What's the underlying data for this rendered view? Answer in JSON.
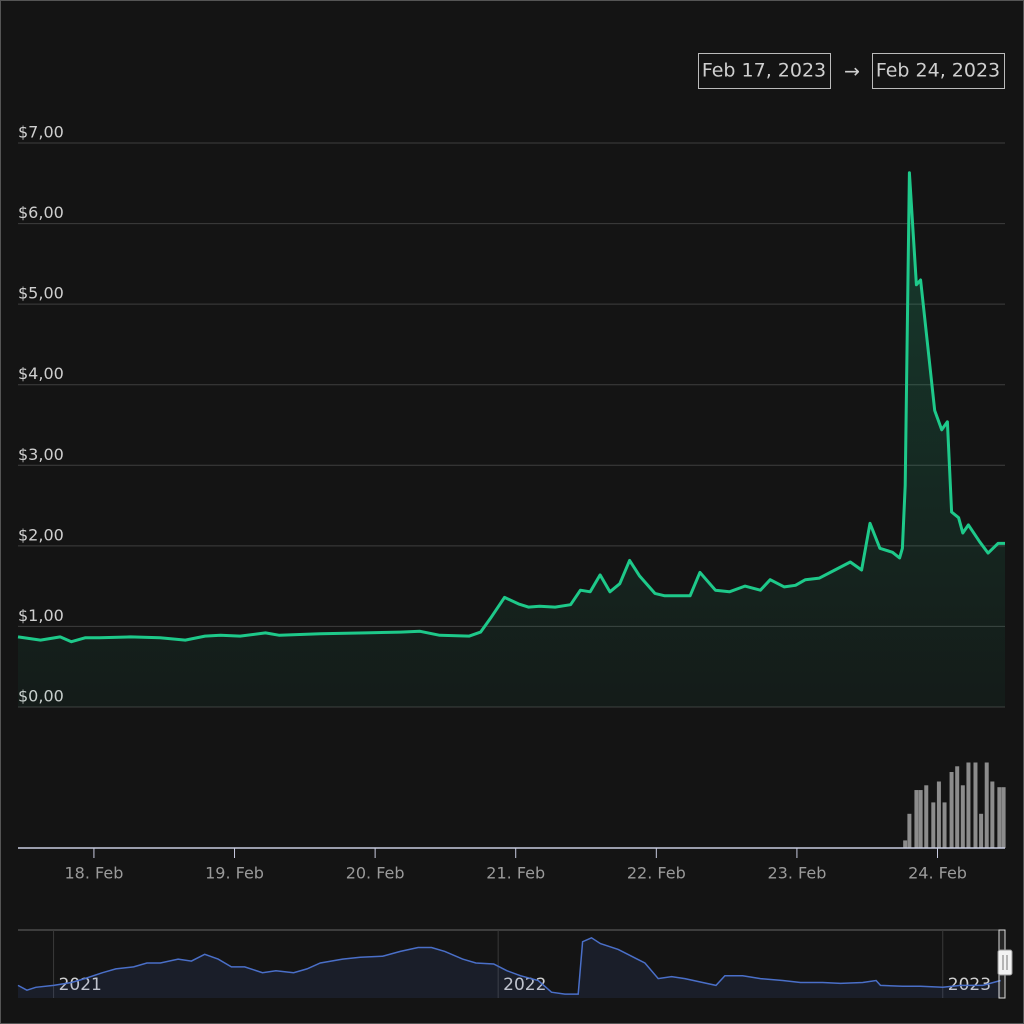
{
  "chart_data": {
    "type": "line",
    "range": {
      "from": "Feb 17, 2023",
      "separator": "→",
      "to": "Feb 24, 2023"
    },
    "x": [
      17.46,
      17.62,
      17.76,
      17.84,
      17.94,
      18.04,
      18.26,
      18.47,
      18.65,
      18.79,
      18.9,
      19.04,
      19.22,
      19.32,
      19.61,
      19.93,
      20.18,
      20.32,
      20.46,
      20.67,
      20.75,
      20.82,
      20.92,
      21.02,
      21.09,
      21.17,
      21.28,
      21.39,
      21.46,
      21.53,
      21.6,
      21.67,
      21.74,
      21.81,
      21.88,
      21.99,
      22.06,
      22.24,
      22.31,
      22.42,
      22.52,
      22.63,
      22.74,
      22.81,
      22.91,
      22.99,
      23.06,
      23.16,
      23.27,
      23.38,
      23.46,
      23.52,
      23.59,
      23.68,
      23.73,
      23.75,
      23.77,
      23.8,
      23.85,
      23.88,
      23.98,
      24.03,
      24.07,
      24.1,
      24.15,
      24.18,
      24.22,
      24.3,
      24.36,
      24.43,
      24.48
    ],
    "values": [
      0.87,
      0.83,
      0.87,
      0.81,
      0.86,
      0.86,
      0.87,
      0.86,
      0.83,
      0.88,
      0.89,
      0.88,
      0.92,
      0.89,
      0.91,
      0.92,
      0.93,
      0.94,
      0.89,
      0.88,
      0.93,
      1.1,
      1.36,
      1.28,
      1.24,
      1.25,
      1.24,
      1.27,
      1.45,
      1.43,
      1.64,
      1.43,
      1.53,
      1.82,
      1.63,
      1.41,
      1.38,
      1.38,
      1.67,
      1.45,
      1.43,
      1.5,
      1.45,
      1.58,
      1.49,
      1.51,
      1.58,
      1.6,
      1.7,
      1.8,
      1.7,
      2.28,
      1.97,
      1.92,
      1.85,
      1.97,
      2.75,
      6.63,
      5.24,
      5.3,
      3.68,
      3.44,
      3.54,
      2.42,
      2.35,
      2.16,
      2.26,
      2.05,
      1.91,
      2.03,
      2.03
    ],
    "color": "#1ec98a",
    "xlim": [
      17.46,
      24.48
    ],
    "xticks": [
      {
        "value": 18,
        "label": "18. Feb"
      },
      {
        "value": 19,
        "label": "19. Feb"
      },
      {
        "value": 20,
        "label": "20. Feb"
      },
      {
        "value": 21,
        "label": "21. Feb"
      },
      {
        "value": 22,
        "label": "22. Feb"
      },
      {
        "value": 23,
        "label": "23. Feb"
      },
      {
        "value": 24,
        "label": "24. Feb"
      }
    ],
    "ylim": [
      0,
      7
    ],
    "yticks": [
      {
        "value": 0,
        "label": "$0,00"
      },
      {
        "value": 1,
        "label": "$1,00"
      },
      {
        "value": 2,
        "label": "$2,00"
      },
      {
        "value": 3,
        "label": "$3,00"
      },
      {
        "value": 4,
        "label": "$4,00"
      },
      {
        "value": 5,
        "label": "$5,00"
      },
      {
        "value": 6,
        "label": "$6,00"
      },
      {
        "value": 7,
        "label": "$7,00"
      }
    ],
    "grid": true,
    "volume": {
      "x": [
        23.77,
        23.8,
        23.85,
        23.88,
        23.92,
        23.97,
        24.01,
        24.05,
        24.1,
        24.14,
        24.18,
        24.22,
        24.27,
        24.31,
        24.35,
        24.39,
        24.44,
        24.47
      ],
      "values": [
        8,
        36,
        61,
        61,
        66,
        48,
        70,
        48,
        80,
        86,
        66,
        90,
        90,
        36,
        90,
        70,
        64,
        64
      ],
      "ylim": [
        0,
        100
      ],
      "color": "#8c8c8c"
    },
    "navigator": {
      "x": [
        2020.92,
        2020.94,
        2020.96,
        2021.0,
        2021.04,
        2021.07,
        2021.11,
        2021.14,
        2021.18,
        2021.21,
        2021.24,
        2021.28,
        2021.31,
        2021.34,
        2021.37,
        2021.4,
        2021.43,
        2021.47,
        2021.5,
        2021.54,
        2021.57,
        2021.6,
        2021.65,
        2021.69,
        2021.74,
        2021.78,
        2021.82,
        2021.85,
        2021.88,
        2021.92,
        2021.95,
        2021.99,
        2022.02,
        2022.05,
        2022.09,
        2022.12,
        2022.15,
        2022.18,
        2022.19,
        2022.21,
        2022.23,
        2022.27,
        2022.3,
        2022.33,
        2022.36,
        2022.39,
        2022.42,
        2022.46,
        2022.49,
        2022.51,
        2022.55,
        2022.59,
        2022.64,
        2022.68,
        2022.73,
        2022.77,
        2022.82,
        2022.85,
        2022.86,
        2022.91,
        2022.95,
        2023.0,
        2023.04,
        2023.09,
        2023.13
      ],
      "values": [
        13,
        8,
        11,
        13,
        16,
        20,
        26,
        30,
        32,
        36,
        36,
        40,
        38,
        45,
        40,
        32,
        32,
        26,
        28,
        26,
        30,
        36,
        40,
        42,
        43,
        48,
        52,
        52,
        48,
        40,
        36,
        35,
        28,
        23,
        18,
        6,
        4,
        4,
        58,
        62,
        56,
        50,
        43,
        36,
        20,
        22,
        20,
        16,
        13,
        23,
        23,
        20,
        18,
        16,
        16,
        15,
        16,
        18,
        13,
        12,
        12,
        11,
        13,
        13,
        18
      ],
      "xlim": [
        2020.92,
        2023.14
      ],
      "xticks": [
        2021,
        2022,
        2023
      ],
      "ylim": [
        0,
        70
      ],
      "color": "#4a6fc8"
    }
  }
}
